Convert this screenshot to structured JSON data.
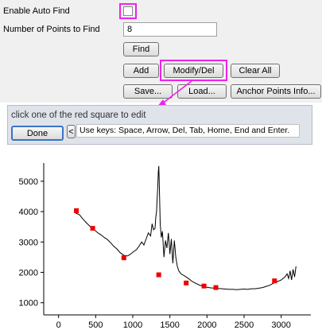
{
  "settings": {
    "enable_auto_find_label": "Enable Auto Find",
    "enable_auto_find_checked": false,
    "num_points_label": "Number of Points to Find",
    "num_points_value": "8"
  },
  "buttons": {
    "find": "Find",
    "add": "Add",
    "modify_del": "Modify/Del",
    "clear_all": "Clear All",
    "save": "Save...",
    "load": "Load...",
    "anchor_info": "Anchor Points Info..."
  },
  "edit_panel": {
    "instruction": "click one of the red square to edit",
    "done": "Done",
    "prev": "<",
    "keys_hint": "Use keys: Space, Arrow, Del, Tab, Home, End and Enter."
  },
  "colors": {
    "highlight": "#ee22ee",
    "anchor": "#ee0000",
    "line": "#000000"
  },
  "chart_data": {
    "type": "line",
    "xlim": [
      -200,
      3400
    ],
    "ylim": [
      600,
      5600
    ],
    "xticks": [
      "0",
      "500",
      "1000",
      "1500",
      "2000",
      "2500",
      "3000"
    ],
    "yticks": [
      "1000",
      "2000",
      "3000",
      "4000",
      "5000"
    ],
    "series": [
      {
        "values_xy": [
          [
            230,
            3950
          ],
          [
            280,
            3900
          ],
          [
            330,
            3750
          ],
          [
            380,
            3620
          ],
          [
            430,
            3500
          ],
          [
            480,
            3400
          ],
          [
            530,
            3300
          ],
          [
            580,
            3220
          ],
          [
            620,
            3140
          ],
          [
            650,
            3100
          ],
          [
            700,
            2980
          ],
          [
            740,
            2870
          ],
          [
            790,
            2760
          ],
          [
            830,
            2650
          ],
          [
            880,
            2560
          ],
          [
            930,
            2540
          ],
          [
            970,
            2600
          ],
          [
            1010,
            2680
          ],
          [
            1050,
            2750
          ],
          [
            1080,
            2850
          ],
          [
            1120,
            3000
          ],
          [
            1150,
            2900
          ],
          [
            1180,
            3100
          ],
          [
            1210,
            3300
          ],
          [
            1240,
            3200
          ],
          [
            1260,
            3600
          ],
          [
            1280,
            3400
          ],
          [
            1300,
            3450
          ],
          [
            1310,
            3800
          ],
          [
            1320,
            4000
          ],
          [
            1328,
            4400
          ],
          [
            1336,
            4800
          ],
          [
            1344,
            5300
          ],
          [
            1350,
            5500
          ],
          [
            1356,
            5050
          ],
          [
            1362,
            4400
          ],
          [
            1370,
            3600
          ],
          [
            1385,
            3150
          ],
          [
            1400,
            3350
          ],
          [
            1420,
            2500
          ],
          [
            1440,
            3050
          ],
          [
            1460,
            2800
          ],
          [
            1480,
            3300
          ],
          [
            1500,
            2600
          ],
          [
            1520,
            3100
          ],
          [
            1540,
            2300
          ],
          [
            1560,
            3050
          ],
          [
            1580,
            2500
          ],
          [
            1600,
            2200
          ],
          [
            1620,
            2050
          ],
          [
            1650,
            1950
          ],
          [
            1700,
            1880
          ],
          [
            1750,
            1800
          ],
          [
            1800,
            1700
          ],
          [
            1850,
            1640
          ],
          [
            1900,
            1580
          ],
          [
            1950,
            1540
          ],
          [
            2000,
            1510
          ],
          [
            2050,
            1490
          ],
          [
            2100,
            1480
          ],
          [
            2150,
            1470
          ],
          [
            2200,
            1460
          ],
          [
            2250,
            1450
          ],
          [
            2300,
            1440
          ],
          [
            2350,
            1440
          ],
          [
            2400,
            1430
          ],
          [
            2450,
            1440
          ],
          [
            2500,
            1450
          ],
          [
            2550,
            1440
          ],
          [
            2600,
            1460
          ],
          [
            2650,
            1460
          ],
          [
            2700,
            1480
          ],
          [
            2750,
            1500
          ],
          [
            2800,
            1540
          ],
          [
            2850,
            1580
          ],
          [
            2900,
            1650
          ],
          [
            2950,
            1700
          ],
          [
            3000,
            1750
          ],
          [
            3050,
            1850
          ],
          [
            3080,
            1950
          ],
          [
            3100,
            1800
          ],
          [
            3120,
            2050
          ],
          [
            3140,
            1750
          ],
          [
            3160,
            2100
          ],
          [
            3180,
            1850
          ],
          [
            3200,
            2200
          ]
        ]
      }
    ],
    "anchor_points": [
      [
        240,
        4030
      ],
      [
        460,
        3450
      ],
      [
        880,
        2480
      ],
      [
        1350,
        1920
      ],
      [
        1720,
        1650
      ],
      [
        1960,
        1550
      ],
      [
        2120,
        1500
      ],
      [
        2910,
        1720
      ]
    ]
  }
}
